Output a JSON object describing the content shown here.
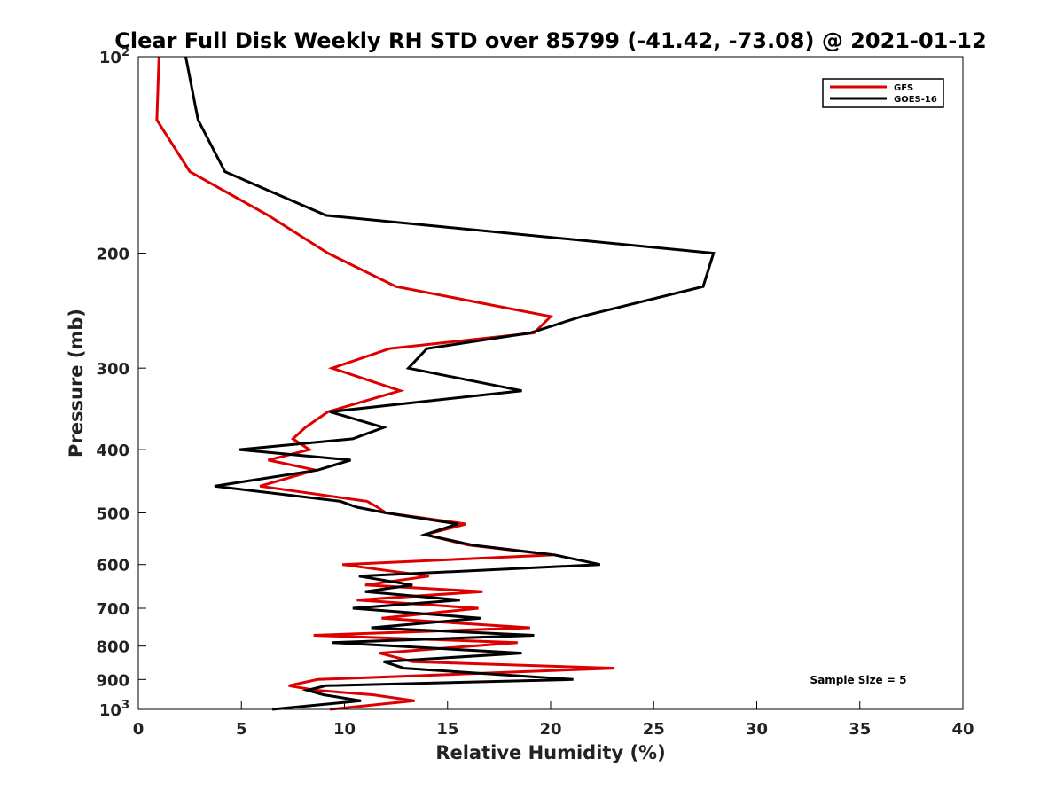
{
  "chart_data": {
    "type": "line",
    "title": "Clear Full Disk Weekly RH STD over 85799 (-41.42, -73.08) @ 2021-01-12",
    "xlabel": "Relative Humidity (%)",
    "ylabel": "Pressure (mb)",
    "xlim": [
      0,
      40
    ],
    "ylim": [
      100,
      1000
    ],
    "y_scale": "log",
    "y_reversed": true,
    "x_ticks": [
      "0",
      "5",
      "10",
      "15",
      "20",
      "25",
      "30",
      "35",
      "40"
    ],
    "x_tick_values": [
      0,
      5,
      10,
      15,
      20,
      25,
      30,
      35,
      40
    ],
    "y_ticks": [
      {
        "value": 100,
        "base": "10",
        "exp": "2"
      },
      {
        "value": 200,
        "base": "200",
        "exp": ""
      },
      {
        "value": 300,
        "base": "300",
        "exp": ""
      },
      {
        "value": 400,
        "base": "400",
        "exp": ""
      },
      {
        "value": 500,
        "base": "500",
        "exp": ""
      },
      {
        "value": 600,
        "base": "600",
        "exp": ""
      },
      {
        "value": 700,
        "base": "700",
        "exp": ""
      },
      {
        "value": 800,
        "base": "800",
        "exp": ""
      },
      {
        "value": 900,
        "base": "900",
        "exp": ""
      },
      {
        "value": 1000,
        "base": "10",
        "exp": "3"
      }
    ],
    "legend_position": "top-right",
    "annotation": "Sample Size = 5",
    "grid": false,
    "series": [
      {
        "name": "GFS",
        "color": "#dd0000",
        "points": [
          [
            1.0,
            100
          ],
          [
            0.9,
            125
          ],
          [
            2.5,
            150
          ],
          [
            6.3,
            175
          ],
          [
            9.2,
            200
          ],
          [
            12.5,
            225
          ],
          [
            20.0,
            250
          ],
          [
            19.2,
            265
          ],
          [
            12.2,
            280
          ],
          [
            9.4,
            300
          ],
          [
            12.7,
            325
          ],
          [
            9.2,
            350
          ],
          [
            8.1,
            370
          ],
          [
            7.5,
            385
          ],
          [
            8.3,
            400
          ],
          [
            6.3,
            415
          ],
          [
            8.6,
            430
          ],
          [
            5.9,
            455
          ],
          [
            11.1,
            480
          ],
          [
            11.6,
            490
          ],
          [
            12.0,
            500
          ],
          [
            15.9,
            520
          ],
          [
            13.9,
            540
          ],
          [
            16.0,
            560
          ],
          [
            20.1,
            580
          ],
          [
            9.9,
            600
          ],
          [
            14.1,
            625
          ],
          [
            11.0,
            645
          ],
          [
            16.7,
            660
          ],
          [
            10.6,
            680
          ],
          [
            16.5,
            700
          ],
          [
            11.8,
            725
          ],
          [
            19.0,
            750
          ],
          [
            8.5,
            770
          ],
          [
            18.4,
            790
          ],
          [
            11.7,
            820
          ],
          [
            13.3,
            845
          ],
          [
            23.1,
            865
          ],
          [
            8.7,
            900
          ],
          [
            7.3,
            920
          ],
          [
            8.6,
            935
          ],
          [
            11.4,
            950
          ],
          [
            13.4,
            970
          ],
          [
            9.3,
            1000
          ]
        ]
      },
      {
        "name": "GOES-16",
        "color": "#000000",
        "points": [
          [
            2.3,
            100
          ],
          [
            2.9,
            125
          ],
          [
            4.2,
            150
          ],
          [
            9.1,
            175
          ],
          [
            27.9,
            200
          ],
          [
            27.4,
            225
          ],
          [
            21.5,
            250
          ],
          [
            19.0,
            265
          ],
          [
            14.0,
            280
          ],
          [
            13.1,
            300
          ],
          [
            18.6,
            325
          ],
          [
            9.3,
            350
          ],
          [
            11.9,
            370
          ],
          [
            10.4,
            385
          ],
          [
            4.9,
            400
          ],
          [
            10.3,
            415
          ],
          [
            8.7,
            430
          ],
          [
            3.7,
            455
          ],
          [
            9.8,
            480
          ],
          [
            10.6,
            490
          ],
          [
            12.0,
            500
          ],
          [
            15.5,
            520
          ],
          [
            13.9,
            540
          ],
          [
            16.2,
            560
          ],
          [
            20.2,
            580
          ],
          [
            22.4,
            600
          ],
          [
            10.7,
            625
          ],
          [
            13.3,
            645
          ],
          [
            11.0,
            660
          ],
          [
            15.6,
            680
          ],
          [
            10.4,
            700
          ],
          [
            16.6,
            725
          ],
          [
            11.3,
            750
          ],
          [
            19.2,
            770
          ],
          [
            9.4,
            790
          ],
          [
            18.6,
            820
          ],
          [
            11.9,
            845
          ],
          [
            12.9,
            865
          ],
          [
            21.1,
            900
          ],
          [
            9.1,
            920
          ],
          [
            8.2,
            935
          ],
          [
            9.0,
            950
          ],
          [
            10.8,
            970
          ],
          [
            6.5,
            1000
          ]
        ]
      }
    ]
  }
}
